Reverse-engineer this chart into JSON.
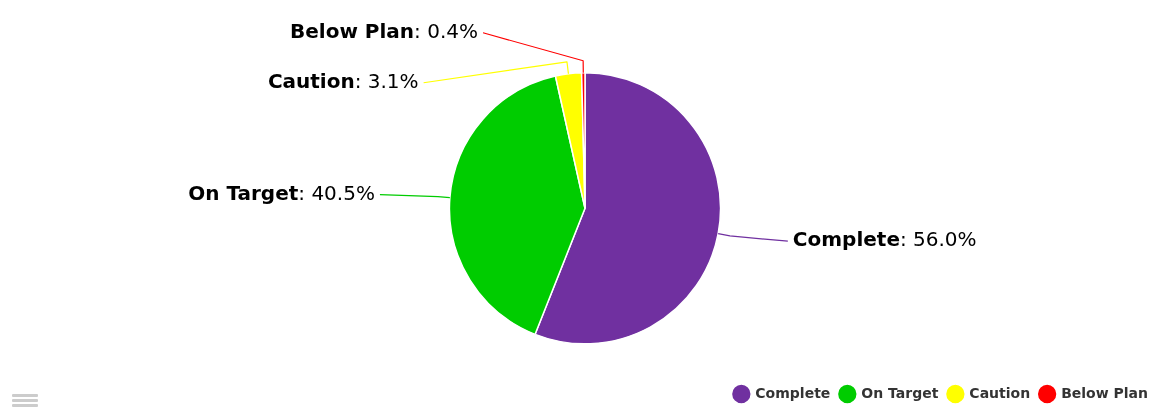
{
  "chart_data": {
    "type": "pie",
    "categories": [
      "Complete",
      "On Target",
      "Caution",
      "Below Plan"
    ],
    "values": [
      56.0,
      40.5,
      3.1,
      0.4
    ],
    "value_labels": [
      ": 56.0%",
      ": 40.5%",
      ": 3.1%",
      ": 0.4%"
    ],
    "colors": [
      "#7030a0",
      "#00cc00",
      "#ffff00",
      "#ff0000"
    ],
    "legend": "bottom right"
  }
}
